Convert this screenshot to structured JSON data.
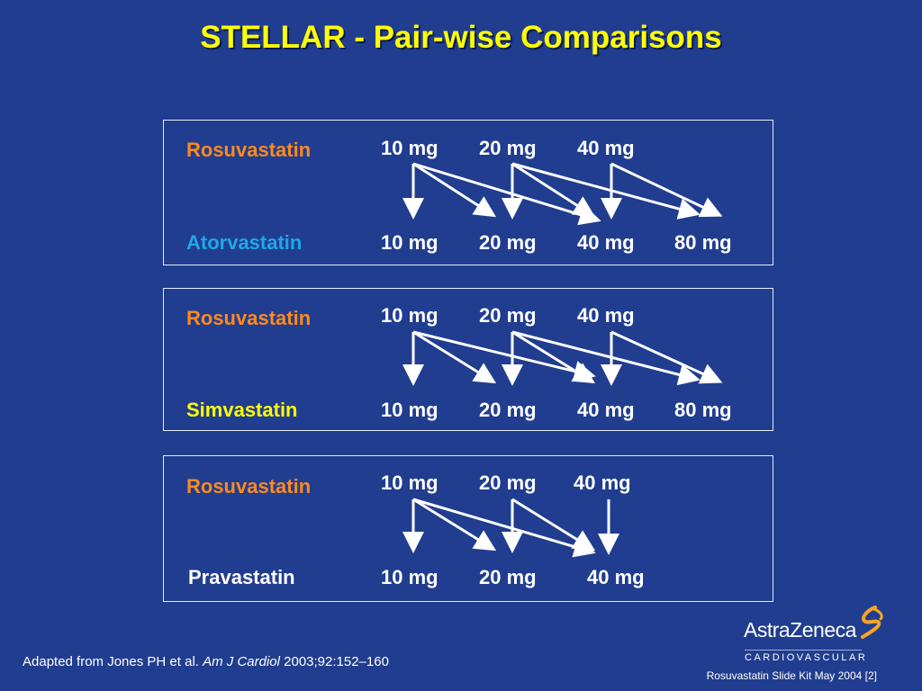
{
  "title": "STELLAR - Pair-wise Comparisons",
  "colors": {
    "background": "#213d8f",
    "title": "#ffff00",
    "rosuvastatin": "#ff8a1e",
    "atorvastatin": "#1fa8e8",
    "simvastatin": "#ffff00",
    "pravastatin": "#ffffff"
  },
  "panels": [
    {
      "top_drug": "Rosuvastatin",
      "top_doses": [
        "10 mg",
        "20 mg",
        "40 mg"
      ],
      "bottom_drug": "Atorvastatin",
      "bottom_doses": [
        "10 mg",
        "20 mg",
        "40 mg",
        "80 mg"
      ]
    },
    {
      "top_drug": "Rosuvastatin",
      "top_doses": [
        "10 mg",
        "20 mg",
        "40 mg"
      ],
      "bottom_drug": "Simvastatin",
      "bottom_doses": [
        "10 mg",
        "20 mg",
        "40 mg",
        "80 mg"
      ]
    },
    {
      "top_drug": "Rosuvastatin",
      "top_doses": [
        "10 mg",
        "20 mg",
        "40 mg"
      ],
      "bottom_drug": "Pravastatin",
      "bottom_doses": [
        "10 mg",
        "20 mg",
        "40 mg"
      ]
    }
  ],
  "footer": {
    "citation_prefix": "Adapted from Jones PH et al. ",
    "citation_journal": "Am J Cardiol",
    "citation_suffix": " 2003;92:152–160",
    "slide_kit": "Rosuvastatin Slide Kit May 2004 [2]"
  },
  "logo": {
    "name": "AstraZeneca",
    "division": "CARDIOVASCULAR"
  }
}
